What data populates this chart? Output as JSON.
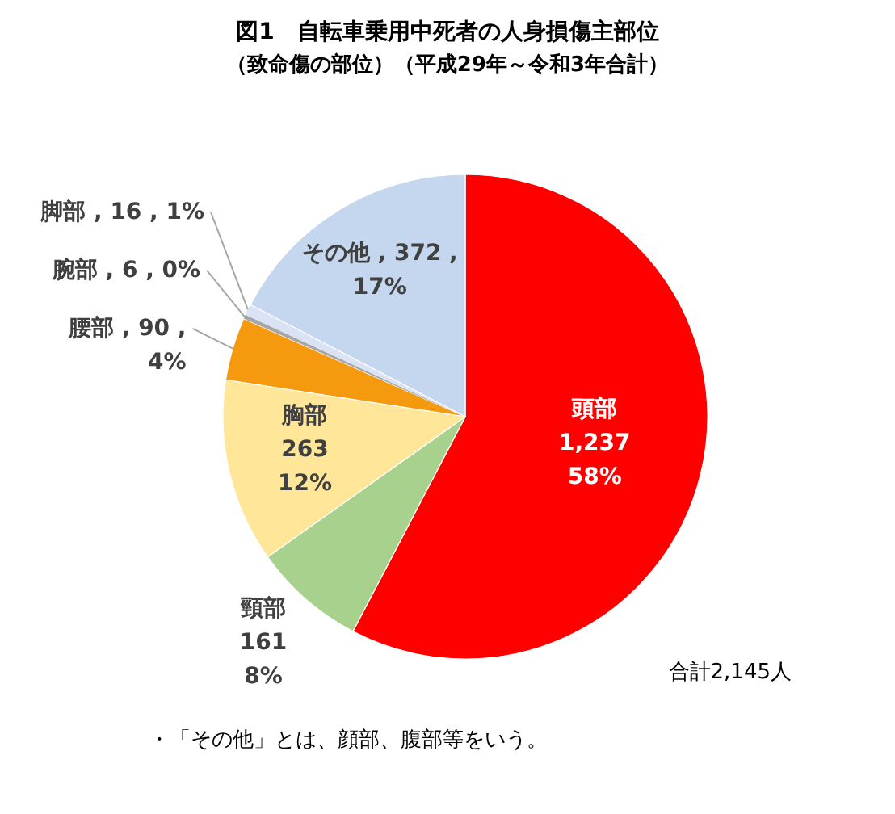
{
  "chart_data": {
    "type": "pie",
    "title": "図1　自転車乗用中死者の人身損傷主部位",
    "subtitle": "（致命傷の部位）（平成29年～令和3年合計）",
    "categories": [
      "頭部",
      "頸部",
      "胸部",
      "腰部",
      "腕部",
      "脚部",
      "その他"
    ],
    "values": [
      1237,
      161,
      263,
      90,
      6,
      16,
      372
    ],
    "value_labels": [
      "1,237\n58%",
      "161\n8%",
      "263\n12%",
      ", 90 ,\n4%",
      ", 6 , 0%",
      ", 16 , 1%",
      ", 372 ,\n17%"
    ],
    "colors": [
      "#ff0000",
      "#a9d18e",
      "#ffe699",
      "#f59a0f",
      "#a6a6a6",
      "#dae3f3",
      "#c5d7ee"
    ],
    "legend": false,
    "annotations": [
      "合計2,145人",
      "・「その他」とは、顔部、腹部等をいう。"
    ]
  }
}
